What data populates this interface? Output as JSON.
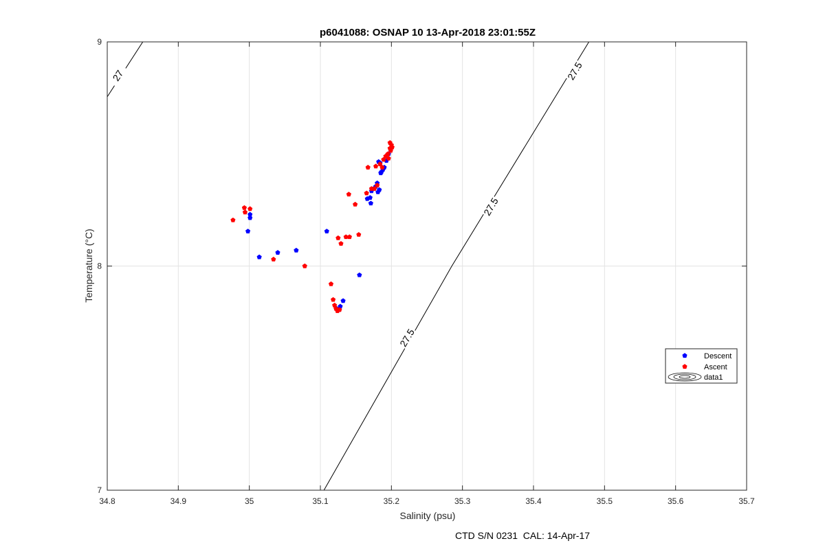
{
  "chart_data": {
    "type": "scatter",
    "title": "p6041088: OSNAP 10 13-Apr-2018 23:01:55Z",
    "xlabel": "Salinity (psu)",
    "ylabel": "Temperature (°C)",
    "xlim": [
      34.8,
      35.7
    ],
    "ylim": [
      7,
      9
    ],
    "xticks": [
      "34.8",
      "34.9",
      "35",
      "35.1",
      "35.2",
      "35.3",
      "35.4",
      "35.5",
      "35.6",
      "35.7"
    ],
    "yticks": [
      "7",
      "8",
      "9"
    ],
    "grid": true,
    "legend_placement": "east",
    "legend": [
      "Descent",
      "Ascent",
      "data1"
    ],
    "series": [
      {
        "name": "Descent",
        "color": "#0000ff",
        "points": [
          [
            34.998,
            8.155
          ],
          [
            35.001,
            8.215
          ],
          [
            35.001,
            8.23
          ],
          [
            35.014,
            8.04
          ],
          [
            35.04,
            8.06
          ],
          [
            35.066,
            8.07
          ],
          [
            35.109,
            8.155
          ],
          [
            35.123,
            7.81
          ],
          [
            35.126,
            7.805
          ],
          [
            35.128,
            7.82
          ],
          [
            35.132,
            7.845
          ],
          [
            35.155,
            7.96
          ],
          [
            35.166,
            8.3
          ],
          [
            35.17,
            8.305
          ],
          [
            35.171,
            8.28
          ],
          [
            35.172,
            8.335
          ],
          [
            35.175,
            8.345
          ],
          [
            35.178,
            8.355
          ],
          [
            35.18,
            8.37
          ],
          [
            35.181,
            8.33
          ],
          [
            35.182,
            8.465
          ],
          [
            35.183,
            8.34
          ],
          [
            35.184,
            8.46
          ],
          [
            35.185,
            8.415
          ],
          [
            35.186,
            8.42
          ],
          [
            35.188,
            8.43
          ],
          [
            35.19,
            8.44
          ],
          [
            35.193,
            8.47
          ],
          [
            35.196,
            8.5
          ]
        ]
      },
      {
        "name": "Ascent",
        "color": "#ff0000",
        "points": [
          [
            34.977,
            8.205
          ],
          [
            34.993,
            8.26
          ],
          [
            34.994,
            8.24
          ],
          [
            35.001,
            8.255
          ],
          [
            35.034,
            8.03
          ],
          [
            35.078,
            8.0
          ],
          [
            35.115,
            7.92
          ],
          [
            35.118,
            7.85
          ],
          [
            35.12,
            7.825
          ],
          [
            35.122,
            7.81
          ],
          [
            35.124,
            7.8
          ],
          [
            35.127,
            7.805
          ],
          [
            35.125,
            8.125
          ],
          [
            35.129,
            8.1
          ],
          [
            35.136,
            8.13
          ],
          [
            35.141,
            8.13
          ],
          [
            35.14,
            8.32
          ],
          [
            35.149,
            8.275
          ],
          [
            35.154,
            8.14
          ],
          [
            35.165,
            8.325
          ],
          [
            35.167,
            8.44
          ],
          [
            35.172,
            8.345
          ],
          [
            35.176,
            8.345
          ],
          [
            35.178,
            8.445
          ],
          [
            35.18,
            8.36
          ],
          [
            35.184,
            8.455
          ],
          [
            35.187,
            8.44
          ],
          [
            35.189,
            8.475
          ],
          [
            35.192,
            8.49
          ],
          [
            35.195,
            8.5
          ],
          [
            35.196,
            8.48
          ],
          [
            35.198,
            8.525
          ],
          [
            35.199,
            8.515
          ],
          [
            35.2,
            8.54
          ],
          [
            35.201,
            8.53
          ],
          [
            35.198,
            8.55
          ]
        ]
      }
    ],
    "contours": [
      {
        "level": "27",
        "points": [
          [
            34.8,
            8.755
          ],
          [
            34.85,
            9.0
          ]
        ],
        "labels": [
          {
            "x": 34.815,
            "y": 8.85
          }
        ]
      },
      {
        "level": "27.5",
        "points": [
          [
            35.105,
            7.0
          ],
          [
            35.285,
            8.0
          ],
          [
            35.478,
            9.0
          ]
        ],
        "labels": [
          {
            "x": 35.222,
            "y": 7.68
          },
          {
            "x": 35.34,
            "y": 8.265
          },
          {
            "x": 35.458,
            "y": 8.87
          }
        ]
      }
    ],
    "footer": "CTD S/N 0231  CAL: 14-Apr-17"
  }
}
